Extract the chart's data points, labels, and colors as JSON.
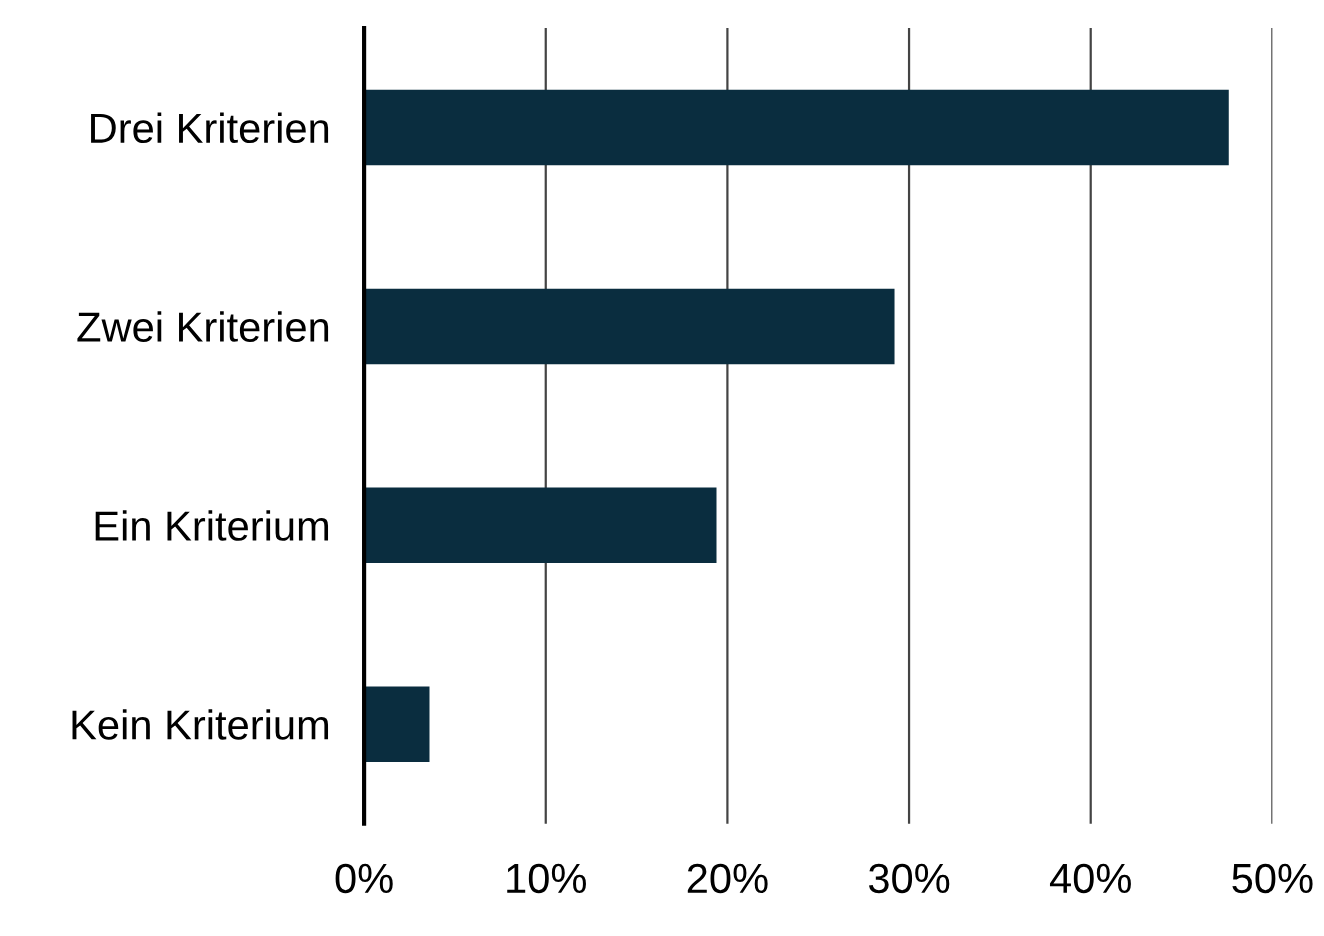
{
  "chart_data": {
    "type": "bar",
    "orientation": "horizontal",
    "categories": [
      "Drei Kriterien",
      "Zwei Kriterien",
      "Ein Kriterium",
      "Kein Kriterium"
    ],
    "values": [
      47.6,
      29.2,
      19.4,
      3.6
    ],
    "color": "#0a2d3f",
    "xlim": [
      0,
      50
    ],
    "xticks": [
      {
        "value": 0,
        "label": "0%"
      },
      {
        "value": 10,
        "label": "10%"
      },
      {
        "value": 20,
        "label": "20%"
      },
      {
        "value": 30,
        "label": "30%"
      },
      {
        "value": 40,
        "label": "40%"
      },
      {
        "value": 50,
        "label": "50%"
      }
    ],
    "grid": "x",
    "legend": false
  }
}
